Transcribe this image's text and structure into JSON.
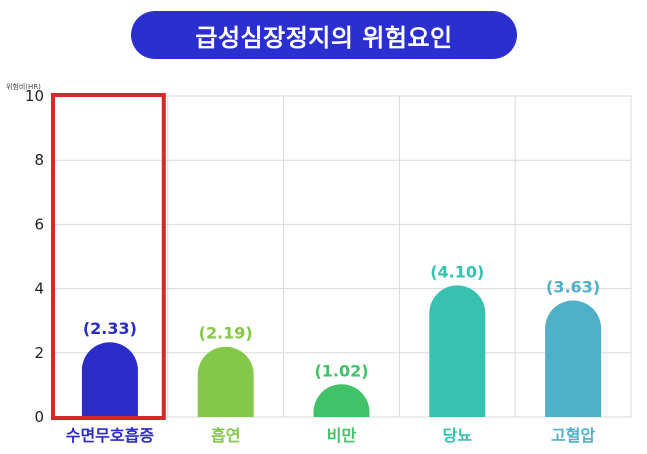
{
  "title": "급성심장정지의 위험요인",
  "colors": {
    "title_bg": "#2b2fd0",
    "highlight_box": "#d42a2a",
    "grid": "#d9d9d9"
  },
  "chart_data": {
    "type": "bar",
    "ylabel": "위험비(HR)",
    "ylim": [
      0,
      10
    ],
    "yticks": [
      0,
      2,
      4,
      6,
      8,
      10
    ],
    "grid": true,
    "categories": [
      "수면무호흡증",
      "흡연",
      "비만",
      "당뇨",
      "고혈압"
    ],
    "values": [
      2.33,
      2.19,
      1.02,
      4.1,
      3.63
    ],
    "value_labels": [
      "(2.33)",
      "(2.19)",
      "(1.02)",
      "(4.10)",
      "(3.63)"
    ],
    "bar_colors": [
      "#2b2bc9",
      "#84c84a",
      "#3fc268",
      "#36c1b0",
      "#4fb0c7"
    ],
    "label_colors": [
      "#2b2bc9",
      "#84c84a",
      "#3fc268",
      "#36c1b0",
      "#4fb0c7"
    ],
    "highlighted_category": "수면무호흡증"
  }
}
